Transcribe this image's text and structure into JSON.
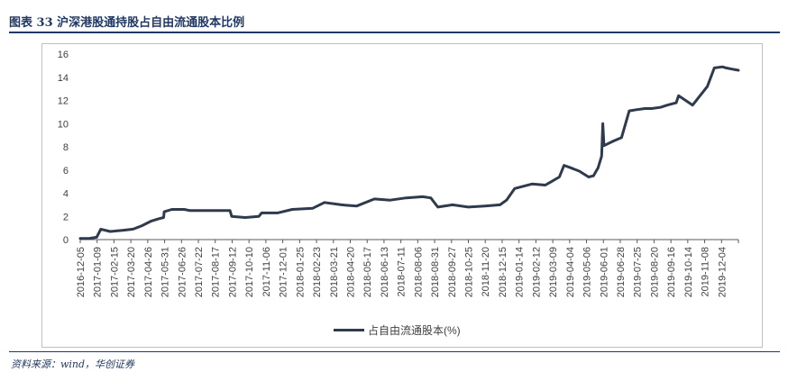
{
  "figure": {
    "title": "图表 33   沪深港股通持股占自由流通股本比例",
    "source": "资料来源：wind，华创证券"
  },
  "colors": {
    "line": "#2f3b4c",
    "title": "#1f3864",
    "axis": "#595959"
  },
  "chart_data": {
    "type": "line",
    "title": "",
    "xlabel": "",
    "ylabel": "",
    "ylim": [
      0,
      16
    ],
    "yticks": [
      0,
      2,
      4,
      6,
      8,
      10,
      12,
      14,
      16
    ],
    "grid": false,
    "legend_position": "bottom",
    "x_tick_labels": [
      "2016-12-05",
      "2017-01-09",
      "2017-02-15",
      "2017-03-20",
      "2017-04-26",
      "2017-05-31",
      "2017-06-26",
      "2017-07-22",
      "2017-08-17",
      "2017-09-12",
      "2017-10-10",
      "2017-11-06",
      "2017-12-01",
      "2018-01-25",
      "2018-02-23",
      "2018-03-21",
      "2018-04-20",
      "2018-05-17",
      "2018-06-13",
      "2018-07-11",
      "2018-08-06",
      "2018-08-31",
      "2018-09-27",
      "2018-10-25",
      "2018-11-20",
      "2018-12-15",
      "2019-01-14",
      "2019-02-12",
      "2019-03-09",
      "2019-04-04",
      "2019-05-06",
      "2019-06-01",
      "2019-06-28",
      "2019-07-25",
      "2019-08-20",
      "2019-09-16",
      "2019-10-14",
      "2019-11-08",
      "2019-12-04"
    ],
    "series": [
      {
        "name": "占自由流通股本(%)",
        "x": [
          "2016-12-05",
          "2016-12-20",
          "2017-01-02",
          "2017-01-09",
          "2017-01-25",
          "2017-02-15",
          "2017-03-05",
          "2017-03-20",
          "2017-04-05",
          "2017-04-18",
          "2017-04-26",
          "2017-04-27",
          "2017-05-10",
          "2017-05-31",
          "2017-06-10",
          "2017-06-26",
          "2017-07-22",
          "2017-08-17",
          "2017-08-20",
          "2017-09-12",
          "2017-10-05",
          "2017-10-10",
          "2017-11-06",
          "2017-12-01",
          "2018-01-05",
          "2018-01-25",
          "2018-02-23",
          "2018-03-21",
          "2018-04-20",
          "2018-05-17",
          "2018-06-13",
          "2018-07-11",
          "2018-07-25",
          "2018-08-06",
          "2018-08-31",
          "2018-09-27",
          "2018-10-25",
          "2018-11-20",
          "2018-12-01",
          "2018-12-15",
          "2019-01-14",
          "2019-02-05",
          "2019-02-12",
          "2019-03-01",
          "2019-03-09",
          "2019-03-20",
          "2019-04-04",
          "2019-04-20",
          "2019-04-28",
          "2019-05-06",
          "2019-05-12",
          "2019-05-14",
          "2019-05-16",
          "2019-06-01",
          "2019-06-15",
          "2019-06-28",
          "2019-07-10",
          "2019-07-25",
          "2019-08-05",
          "2019-08-20",
          "2019-09-01",
          "2019-09-16",
          "2019-09-20",
          "2019-10-14",
          "2019-10-25",
          "2019-11-08",
          "2019-11-20",
          "2019-12-04",
          "2019-12-10",
          "2019-12-20",
          "2019-12-31"
        ],
        "values": [
          0.1,
          0.1,
          0.2,
          0.9,
          0.7,
          0.8,
          0.9,
          1.2,
          1.6,
          1.8,
          1.9,
          2.4,
          2.6,
          2.6,
          2.5,
          2.5,
          2.5,
          2.5,
          2.0,
          1.9,
          2.0,
          2.3,
          2.3,
          2.6,
          2.7,
          3.2,
          3.0,
          2.9,
          3.5,
          3.4,
          3.6,
          3.7,
          3.6,
          2.8,
          3.0,
          2.8,
          2.9,
          3.0,
          3.4,
          4.4,
          4.8,
          4.7,
          4.9,
          5.4,
          6.4,
          6.2,
          5.9,
          5.4,
          5.5,
          6.2,
          7.2,
          10.0,
          8.1,
          8.5,
          8.8,
          11.1,
          11.2,
          11.3,
          11.3,
          11.4,
          11.6,
          11.8,
          12.4,
          11.6,
          12.3,
          13.2,
          14.8,
          14.9,
          14.8,
          14.7,
          14.6
        ]
      }
    ]
  }
}
